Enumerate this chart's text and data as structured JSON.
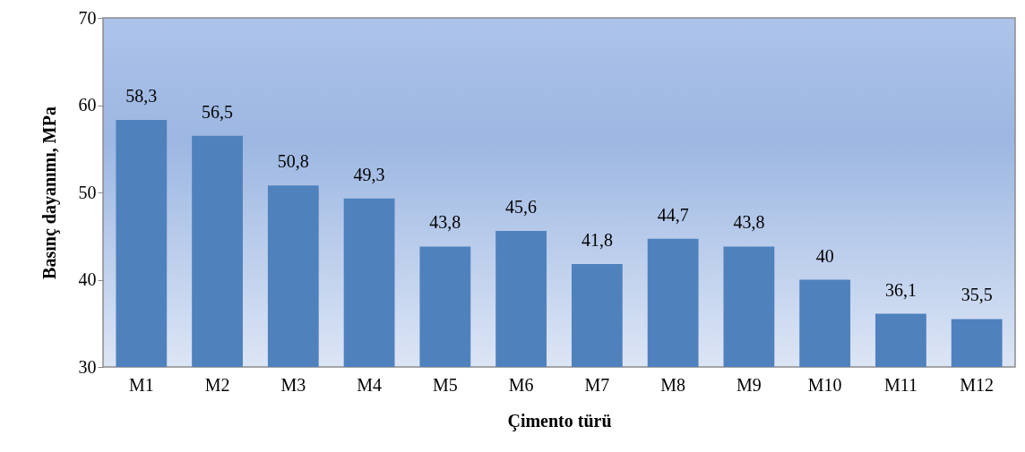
{
  "chart_data": {
    "type": "bar",
    "xlabel": "Çimento türü",
    "ylabel": "Basınç dayanımı, MPa",
    "categories": [
      "M1",
      "M2",
      "M3",
      "M4",
      "M5",
      "M6",
      "M7",
      "M8",
      "M9",
      "M10",
      "M11",
      "M12"
    ],
    "values": [
      58.3,
      56.5,
      50.8,
      49.3,
      43.8,
      45.6,
      41.8,
      44.7,
      43.8,
      40,
      36.1,
      35.5
    ],
    "value_labels": [
      "58,3",
      "56,5",
      "50,8",
      "49,3",
      "43,8",
      "45,6",
      "41,8",
      "44,7",
      "43,8",
      "40",
      "36,1",
      "35,5"
    ],
    "color": "#4f81bd",
    "ylim": [
      30,
      70
    ],
    "yticks": [
      30,
      40,
      50,
      60,
      70
    ],
    "grid": false
  }
}
